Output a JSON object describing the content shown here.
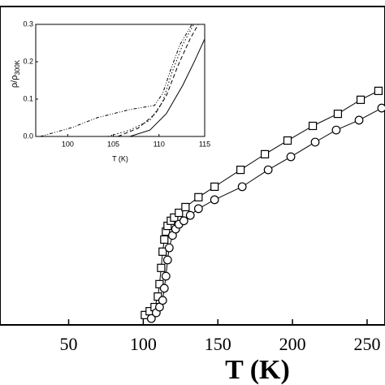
{
  "chart_data": [
    {
      "type": "scatter",
      "x_label": "T (K)",
      "xlim": [
        4,
        262
      ],
      "ylim": [
        0,
        1
      ],
      "xticks": [
        50,
        100,
        150,
        200,
        250
      ],
      "series": [
        {
          "marker": "square",
          "color": "#000000",
          "x": [
            101.1,
            104.3,
            107.6,
            109.8,
            110.9,
            112.0,
            113.0,
            114.1,
            115.2,
            116.3,
            118.5,
            120.7,
            123.9,
            128.3,
            137.0,
            147.8,
            165.2,
            181.5,
            196.7,
            213.6,
            230.4,
            245.7,
            257.6
          ],
          "values": [
            0.031,
            0.043,
            0.056,
            0.089,
            0.128,
            0.179,
            0.23,
            0.268,
            0.293,
            0.311,
            0.327,
            0.337,
            0.352,
            0.37,
            0.401,
            0.434,
            0.487,
            0.536,
            0.579,
            0.625,
            0.663,
            0.707,
            0.735
          ]
        },
        {
          "marker": "circle",
          "color": "#000000",
          "x": [
            105.4,
            108.7,
            110.9,
            113.0,
            114.1,
            115.2,
            116.3,
            117.4,
            119.6,
            121.7,
            123.9,
            127.2,
            131.5,
            137.0,
            147.8,
            166.3,
            183.7,
            198.9,
            215.2,
            229.3,
            244.6,
            259.8
          ],
          "values": [
            0.02,
            0.038,
            0.056,
            0.077,
            0.115,
            0.153,
            0.204,
            0.242,
            0.281,
            0.301,
            0.316,
            0.327,
            0.344,
            0.365,
            0.393,
            0.434,
            0.487,
            0.528,
            0.574,
            0.612,
            0.643,
            0.681
          ]
        }
      ]
    },
    {
      "type": "line",
      "x_label": "T (K)",
      "y_label": "ρ/ρ",
      "y_label_sub": "300K",
      "xlim": [
        96.5,
        115
      ],
      "ylim": [
        0,
        0.3
      ],
      "xticks": [
        100,
        105,
        110,
        115
      ],
      "yticks": [
        {
          "value": 0,
          "label": "0.0"
        },
        0.1,
        0.2,
        0.3
      ],
      "series": [
        {
          "linestyle": "dashdotdot",
          "color": "#000000",
          "x": [
            97.0,
            100.5,
            103.2,
            106.8,
            109.5,
            110.4,
            111.3,
            112.3,
            113.6
          ],
          "values": [
            0,
            0.024,
            0.05,
            0.072,
            0.083,
            0.115,
            0.18,
            0.246,
            0.3
          ]
        },
        {
          "linestyle": "dotted",
          "color": "#000000",
          "x": [
            104.4,
            106.8,
            109.0,
            110.4,
            111.4,
            112.6,
            113.8
          ],
          "values": [
            0,
            0.017,
            0.043,
            0.093,
            0.17,
            0.246,
            0.3
          ]
        },
        {
          "linestyle": "dashed",
          "color": "#000000",
          "x": [
            105.5,
            107.7,
            109.6,
            110.8,
            112.1,
            113.4,
            114.3
          ],
          "values": [
            0,
            0.022,
            0.061,
            0.109,
            0.191,
            0.261,
            0.3
          ]
        },
        {
          "linestyle": "solid",
          "color": "#000000",
          "x": [
            106.8,
            109.0,
            110.8,
            112.6,
            113.9,
            115.0
          ],
          "values": [
            0,
            0.017,
            0.061,
            0.137,
            0.202,
            0.261
          ]
        }
      ]
    }
  ]
}
